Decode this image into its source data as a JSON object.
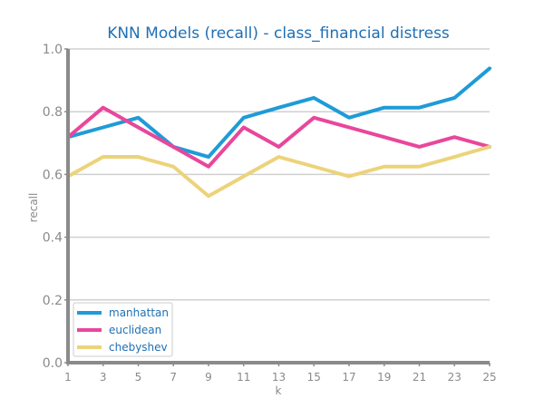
{
  "chart_data": {
    "type": "line",
    "title": "KNN Models (recall) - class_financial distress",
    "xlabel": "k",
    "ylabel": "recall",
    "x": [
      1,
      3,
      5,
      7,
      9,
      11,
      13,
      15,
      17,
      19,
      21,
      23,
      25
    ],
    "xticks": [
      "1",
      "3",
      "5",
      "7",
      "9",
      "11",
      "13",
      "15",
      "17",
      "19",
      "21",
      "23",
      "25"
    ],
    "yticks": [
      "0.0",
      "0.2",
      "0.4",
      "0.6",
      "0.8",
      "1.0"
    ],
    "xlim": [
      1,
      25
    ],
    "ylim": [
      0,
      1
    ],
    "grid": "horizontal",
    "legend_position": "bottom-left",
    "series": [
      {
        "name": "manhattan",
        "color": "#1f9bd7",
        "values": [
          0.719,
          0.75,
          0.781,
          0.688,
          0.656,
          0.781,
          0.813,
          0.844,
          0.781,
          0.813,
          0.813,
          0.844,
          0.938
        ]
      },
      {
        "name": "euclidean",
        "color": "#e8479b",
        "values": [
          0.719,
          0.813,
          0.75,
          0.688,
          0.625,
          0.75,
          0.688,
          0.781,
          0.75,
          0.719,
          0.688,
          0.719,
          0.688
        ]
      },
      {
        "name": "chebyshev",
        "color": "#ecd37a",
        "values": [
          0.594,
          0.656,
          0.656,
          0.625,
          0.531,
          0.594,
          0.656,
          0.625,
          0.594,
          0.625,
          0.625,
          0.656,
          0.688
        ]
      }
    ]
  }
}
